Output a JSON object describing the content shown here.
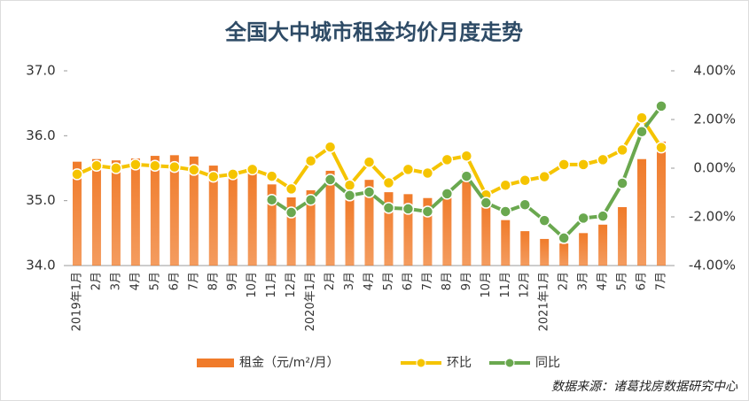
{
  "chart_data": {
    "type": "bar-line",
    "title": "全国大中城市租金均价月度走势",
    "categories": [
      "2019年1月",
      "2月",
      "3月",
      "4月",
      "5月",
      "6月",
      "7月",
      "8月",
      "9月",
      "10月",
      "11月",
      "12月",
      "2020年1月",
      "2月",
      "3月",
      "4月",
      "5月",
      "6月",
      "7月",
      "8月",
      "9月",
      "10月",
      "11月",
      "12月",
      "2021年1月",
      "2月",
      "3月",
      "4月",
      "5月",
      "6月",
      "7月"
    ],
    "series": [
      {
        "name": "租金（元/m²/月）",
        "type": "bar",
        "color": "#f07b2a",
        "values": [
          35.6,
          35.64,
          35.62,
          35.65,
          35.69,
          35.7,
          35.68,
          35.54,
          35.4,
          35.44,
          35.25,
          35.05,
          35.16,
          35.46,
          35.02,
          35.32,
          35.13,
          35.1,
          35.04,
          35.12,
          35.45,
          34.93,
          34.7,
          34.53,
          34.41,
          34.34,
          34.5,
          34.63,
          34.9,
          35.64,
          35.91
        ]
      },
      {
        "name": "环比",
        "type": "line",
        "axis": "y2",
        "color": "#f5c400",
        "values": [
          -0.25,
          0.1,
          0,
          0.15,
          0.1,
          0.05,
          -0.07,
          -0.35,
          -0.25,
          -0.05,
          -0.33,
          -0.85,
          0.3,
          0.87,
          -0.7,
          0.25,
          -0.6,
          -0.05,
          -0.2,
          0.35,
          0.5,
          -1.1,
          -0.7,
          -0.5,
          -0.35,
          0.15,
          0.15,
          0.35,
          0.75,
          2.07,
          0.85
        ]
      },
      {
        "name": "同比",
        "type": "line",
        "axis": "y2",
        "color": "#6aa84f",
        "values": [
          null,
          null,
          null,
          null,
          null,
          null,
          null,
          null,
          null,
          null,
          -1.3,
          -1.82,
          -1.3,
          -0.47,
          -1.12,
          -0.98,
          -1.63,
          -1.67,
          -1.78,
          -1.05,
          -0.33,
          -1.42,
          -1.78,
          -1.5,
          -2.15,
          -2.87,
          -2.05,
          -1.97,
          -0.62,
          1.5,
          2.55
        ]
      }
    ],
    "ylim": [
      34,
      37
    ],
    "yticks": [
      {
        "value": 34,
        "label": "34.0"
      },
      {
        "value": 35,
        "label": "35.0"
      },
      {
        "value": 36,
        "label": "36.0"
      },
      {
        "value": 37,
        "label": "37.0"
      }
    ],
    "y2lim": [
      -4,
      4
    ],
    "y2ticks": [
      {
        "value": -4,
        "label": "-4.00%"
      },
      {
        "value": -2,
        "label": "-2.00%"
      },
      {
        "value": 0,
        "label": "0.00%"
      },
      {
        "value": 2,
        "label": "2.00%"
      },
      {
        "value": 4,
        "label": "4.00%"
      }
    ],
    "source": "数据来源：诸葛找房数据研究中心"
  }
}
